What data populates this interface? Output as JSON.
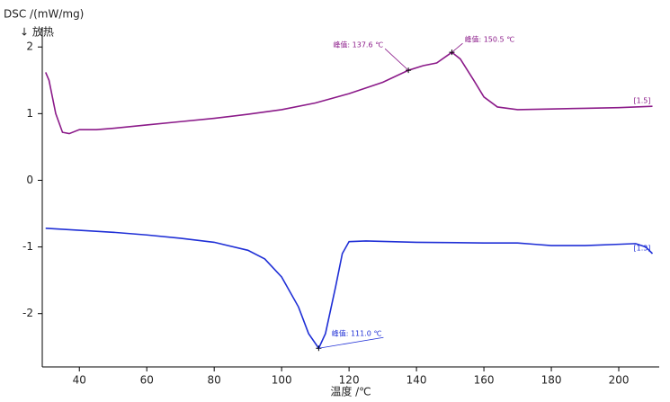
{
  "chart_data": {
    "type": "line",
    "ylabel": "DSC /(mW/mg)",
    "ylabel_note": "↓ 放热",
    "xlabel": "温度 /℃",
    "xlim": [
      29,
      212
    ],
    "ylim": [
      -2.8,
      2.3
    ],
    "xticks": [
      40,
      60,
      80,
      100,
      120,
      140,
      160,
      180,
      200
    ],
    "yticks": [
      -2,
      -1,
      0,
      1,
      2
    ],
    "grid": false,
    "series": [
      {
        "label": "[1.5]",
        "color": "#8b1a89",
        "x": [
          30,
          31,
          33,
          35,
          37,
          40,
          45,
          50,
          60,
          70,
          80,
          90,
          100,
          110,
          120,
          130,
          137.6,
          142,
          146,
          150.5,
          153,
          157,
          160,
          164,
          170,
          180,
          190,
          200,
          210
        ],
        "values": [
          1.62,
          1.5,
          1.0,
          0.72,
          0.7,
          0.76,
          0.76,
          0.78,
          0.83,
          0.88,
          0.93,
          0.99,
          1.06,
          1.16,
          1.3,
          1.47,
          1.65,
          1.72,
          1.76,
          1.92,
          1.82,
          1.5,
          1.25,
          1.1,
          1.06,
          1.07,
          1.08,
          1.09,
          1.11
        ]
      },
      {
        "label": "[1.3]",
        "color": "#1f2fd6",
        "x": [
          30,
          40,
          50,
          60,
          70,
          80,
          90,
          95,
          100,
          105,
          108,
          111.0,
          113,
          116,
          118,
          120,
          125,
          140,
          160,
          170,
          175,
          180,
          190,
          200,
          205,
          208,
          210
        ],
        "values": [
          -0.72,
          -0.75,
          -0.78,
          -0.82,
          -0.87,
          -0.93,
          -1.05,
          -1.18,
          -1.45,
          -1.9,
          -2.3,
          -2.52,
          -2.3,
          -1.6,
          -1.1,
          -0.92,
          -0.91,
          -0.93,
          -0.94,
          -0.94,
          -0.96,
          -0.98,
          -0.98,
          -0.96,
          -0.95,
          -1.0,
          -1.1
        ]
      }
    ],
    "annotations": [
      {
        "text": "峰值: 137.6 ℃",
        "x": 137.6,
        "y": 1.65,
        "color": "#8b1a89"
      },
      {
        "text": "峰值: 150.5 ℃",
        "x": 150.5,
        "y": 1.92,
        "color": "#8b1a89"
      },
      {
        "text": "峰值: 111.0 ℃",
        "x": 111.0,
        "y": -2.52,
        "color": "#1f2fd6"
      }
    ]
  }
}
